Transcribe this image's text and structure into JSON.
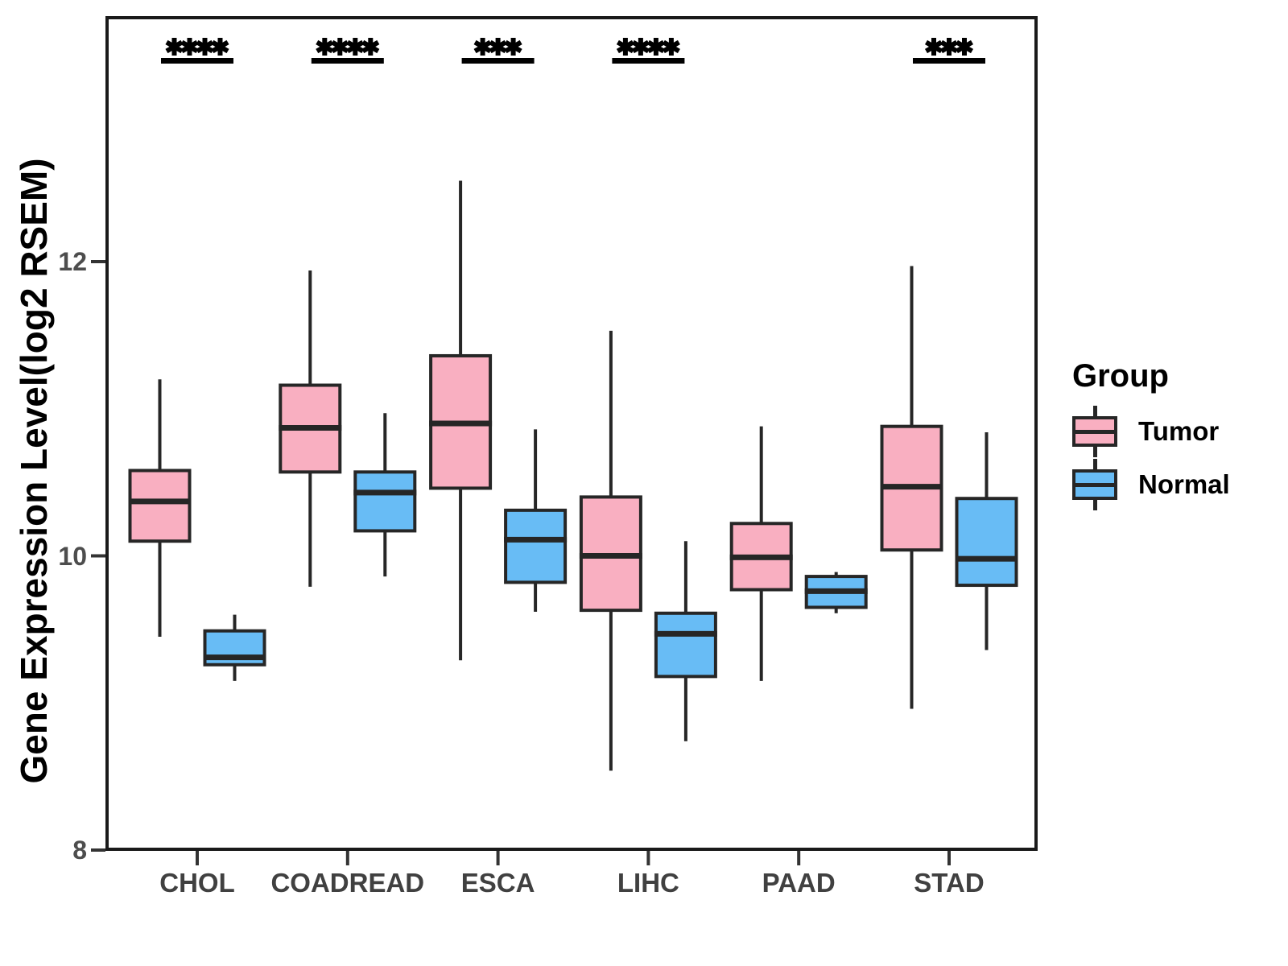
{
  "chart_data": {
    "type": "grouped_boxplot",
    "title": "",
    "xlabel": "",
    "ylabel": "Gene Expression Level(log2 RSEM)",
    "categories": [
      "CHOL",
      "COADREAD",
      "ESCA",
      "LIHC",
      "PAAD",
      "STAD"
    ],
    "y_axis": {
      "tick_values": [
        8,
        10,
        12
      ],
      "tick_labels": [
        "8",
        "10",
        "12"
      ],
      "ylim": [
        8,
        13.65
      ],
      "grid": "off"
    },
    "legend": {
      "title": "Group",
      "position": "right",
      "entries": [
        {
          "label": "Tumor",
          "color": "#F9AFC1"
        },
        {
          "label": "Normal",
          "color": "#68BCF5"
        }
      ]
    },
    "significance": [
      {
        "category": "CHOL",
        "stars": "****"
      },
      {
        "category": "COADREAD",
        "stars": "****"
      },
      {
        "category": "ESCA",
        "stars": "***"
      },
      {
        "category": "LIHC",
        "stars": "****"
      },
      {
        "category": "STAD",
        "stars": "***"
      }
    ],
    "series": [
      {
        "name": "Tumor",
        "color": "#F9AFC1",
        "boxes": [
          {
            "category": "CHOL",
            "whisker_low": 9.45,
            "q1": 10.1,
            "median": 10.37,
            "q3": 10.58,
            "whisker_high": 11.2
          },
          {
            "category": "COADREAD",
            "whisker_low": 9.79,
            "q1": 10.57,
            "median": 10.87,
            "q3": 11.16,
            "whisker_high": 11.94
          },
          {
            "category": "ESCA",
            "whisker_low": 9.29,
            "q1": 10.46,
            "median": 10.9,
            "q3": 11.36,
            "whisker_high": 12.55
          },
          {
            "category": "LIHC",
            "whisker_low": 8.54,
            "q1": 9.63,
            "median": 10.0,
            "q3": 10.4,
            "whisker_high": 11.53
          },
          {
            "category": "PAAD",
            "whisker_low": 9.15,
            "q1": 9.77,
            "median": 9.99,
            "q3": 10.22,
            "whisker_high": 10.88
          },
          {
            "category": "STAD",
            "whisker_low": 8.96,
            "q1": 10.04,
            "median": 10.47,
            "q3": 10.88,
            "whisker_high": 11.97
          }
        ]
      },
      {
        "name": "Normal",
        "color": "#68BCF5",
        "boxes": [
          {
            "category": "CHOL",
            "whisker_low": 9.15,
            "q1": 9.26,
            "median": 9.31,
            "q3": 9.49,
            "whisker_high": 9.6
          },
          {
            "category": "COADREAD",
            "whisker_low": 9.86,
            "q1": 10.17,
            "median": 10.43,
            "q3": 10.57,
            "whisker_high": 10.97
          },
          {
            "category": "ESCA",
            "whisker_low": 9.62,
            "q1": 9.82,
            "median": 10.11,
            "q3": 10.31,
            "whisker_high": 10.86
          },
          {
            "category": "LIHC",
            "whisker_low": 8.74,
            "q1": 9.18,
            "median": 9.47,
            "q3": 9.61,
            "whisker_high": 10.1
          },
          {
            "category": "PAAD",
            "whisker_low": 9.61,
            "q1": 9.65,
            "median": 9.76,
            "q3": 9.86,
            "whisker_high": 9.89
          },
          {
            "category": "STAD",
            "whisker_low": 9.36,
            "q1": 9.8,
            "median": 9.98,
            "q3": 10.39,
            "whisker_high": 10.84
          }
        ]
      }
    ]
  },
  "colors": {
    "stroke": "#262626",
    "panel_border": "#1A1A1A",
    "tick_mark": "#333333",
    "y_tick_label": "#4D4D4D",
    "x_tick_label": "#404040",
    "star": "#000000",
    "background": "#FFFFFF"
  }
}
